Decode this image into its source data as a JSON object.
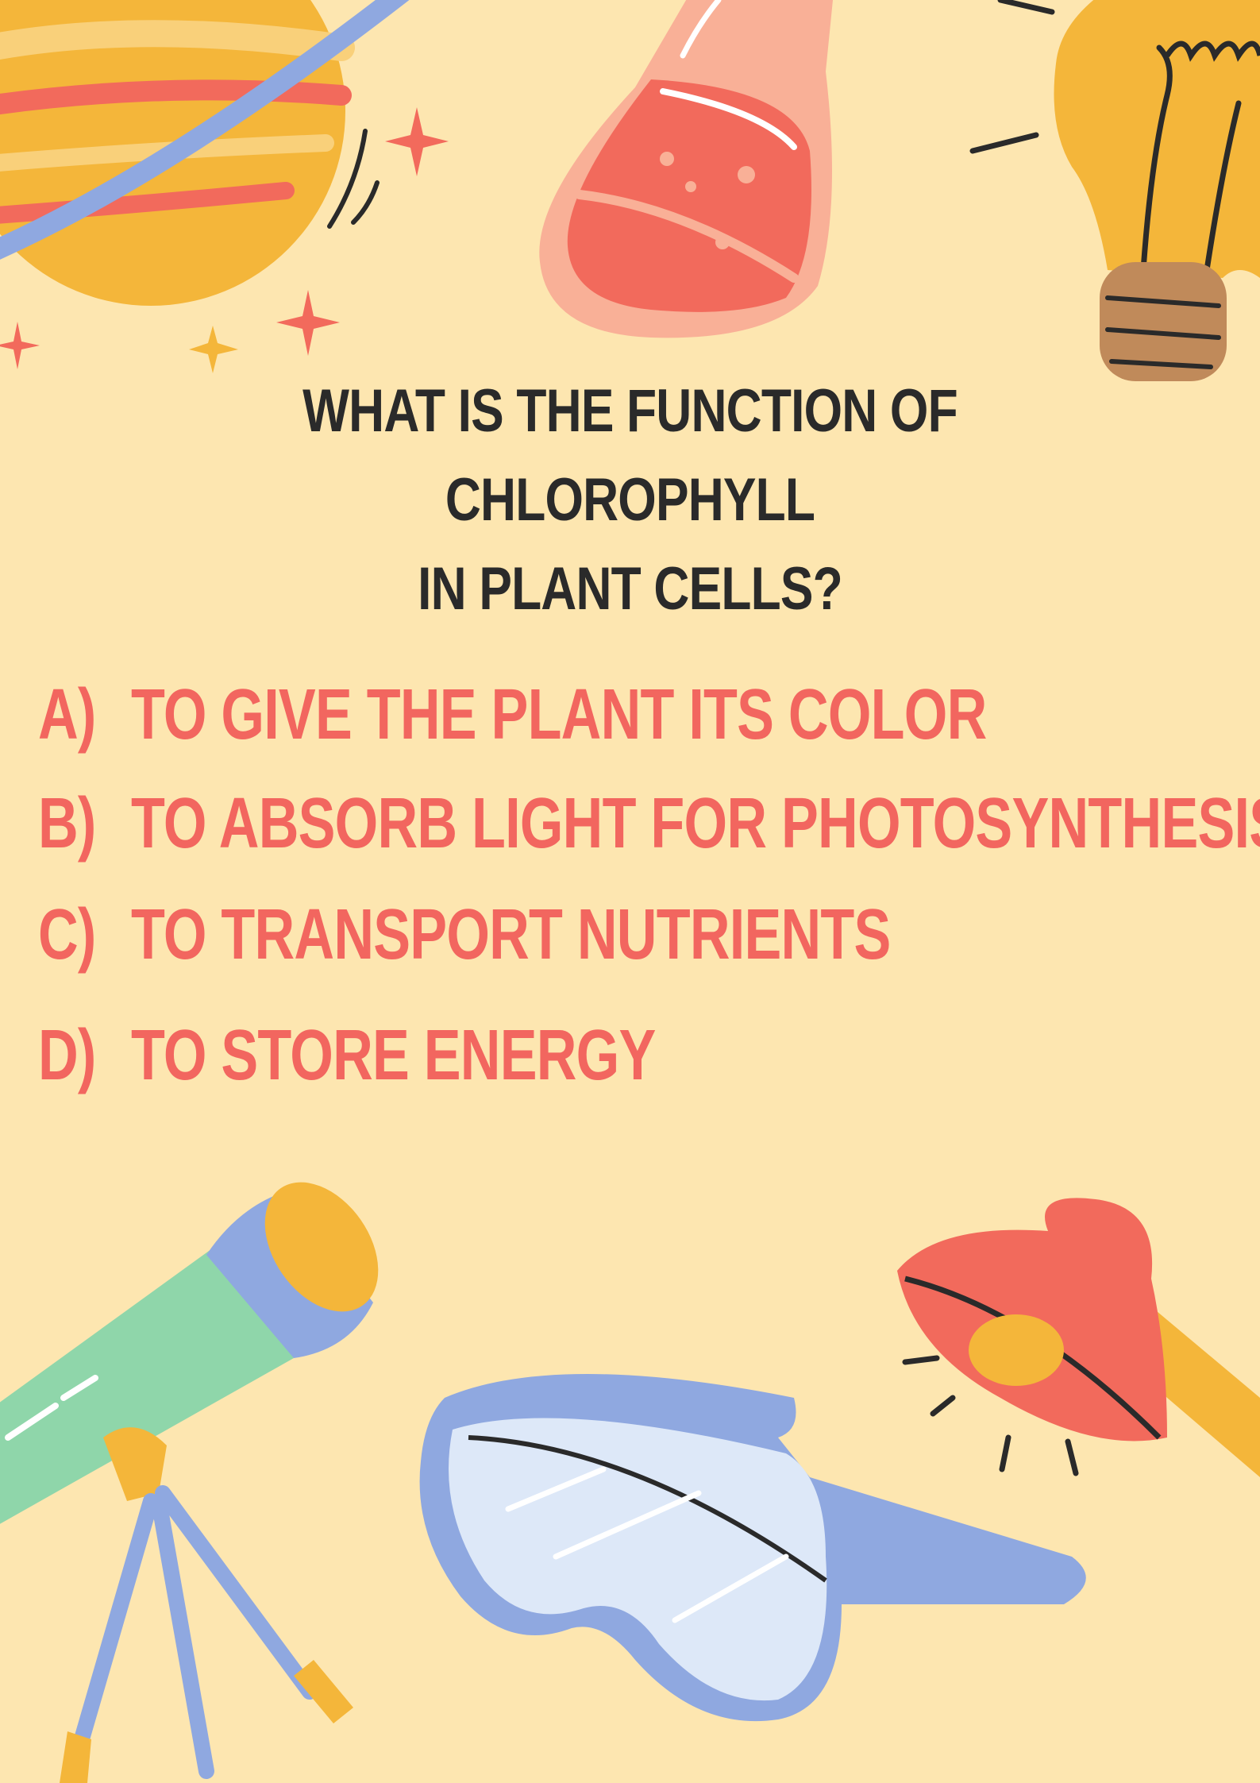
{
  "question": {
    "line1": "WHAT IS THE FUNCTION OF CHLOROPHYLL",
    "line2": "IN PLANT CELLS?"
  },
  "options": [
    {
      "letter": "A)",
      "text": "TO GIVE THE PLANT ITS COLOR"
    },
    {
      "letter": "B)",
      "text": "TO ABSORB LIGHT FOR PHOTOSYNTHESIS"
    },
    {
      "letter": "C)",
      "text": "TO TRANSPORT NUTRIENTS"
    },
    {
      "letter": "D)",
      "text": "TO STORE ENERGY"
    }
  ],
  "colors": {
    "background": "#fde6b0",
    "question_text": "#2a2a2a",
    "option_text": "#f2665f"
  },
  "illustrations": [
    "planet-icon",
    "flask-icon",
    "lightbulb-icon",
    "telescope-icon",
    "safety-goggles-icon",
    "desk-lamp-icon",
    "sparkle-icon"
  ]
}
